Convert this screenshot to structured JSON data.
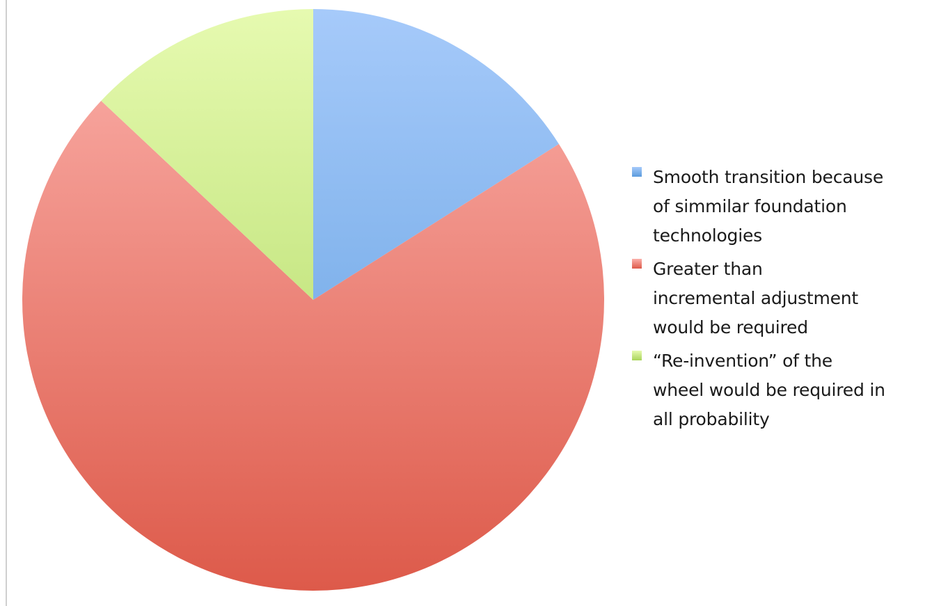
{
  "chart_data": {
    "type": "pie",
    "title": "",
    "start_angle_deg": 0,
    "direction": "clockwise",
    "legend_position": "right",
    "slices": [
      {
        "label": "Smooth transition because\nof simmilar foundation\ntechnologies",
        "value": 16,
        "color": "#6ea7e8",
        "gradient": [
          "#a6cafa",
          "#5b9bdd"
        ]
      },
      {
        "label": "Greater than\nincremental adjustment\nwould be required",
        "value": 71,
        "color": "#ea7d73",
        "gradient": [
          "#fbb0aa",
          "#dd5a4a"
        ]
      },
      {
        "label": " “Re-invention” of the\nwheel would be required in\nall probability",
        "value": 13,
        "color": "#c2e07e",
        "gradient": [
          "#e6fab0",
          "#a9d45a"
        ]
      }
    ]
  }
}
